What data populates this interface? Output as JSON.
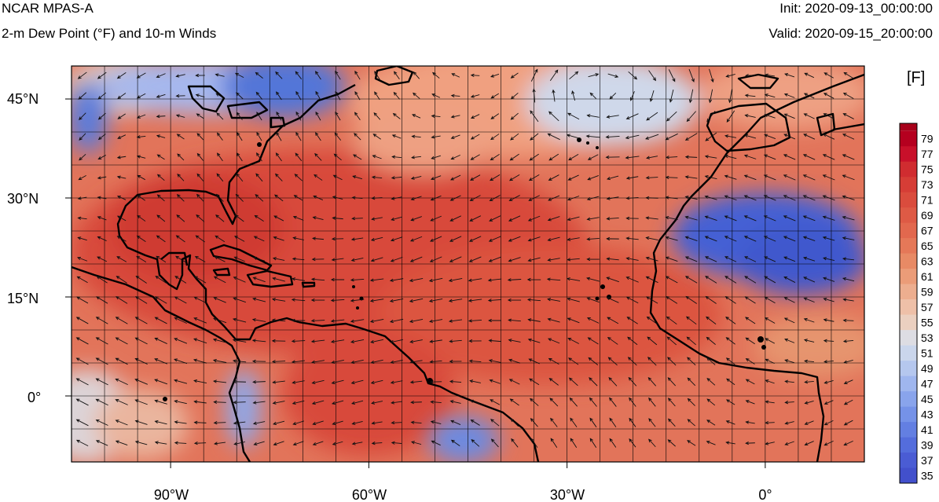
{
  "header": {
    "model": "NCAR MPAS-A",
    "field": "2-m Dew Point (°F) and 10-m Winds",
    "init": "Init: 2020-09-13_00:00:00",
    "valid": "Valid: 2020-09-15_20:00:00"
  },
  "map": {
    "lat_labels": [
      "45°N",
      "30°N",
      "15°N",
      "0°"
    ],
    "lon_labels": [
      "90°W",
      "60°W",
      "30°W",
      "0°"
    ],
    "lat_range": [
      -10,
      50
    ],
    "lon_range": [
      -105,
      15
    ],
    "grid_spacing_deg": 5,
    "colors": {
      "warm": "#d9503a",
      "cool": "#4466d8",
      "coast": "#000000"
    }
  },
  "colorbar": {
    "units": "[F]",
    "labels": [
      "79",
      "77",
      "75",
      "73",
      "71",
      "69",
      "67",
      "65",
      "63",
      "61",
      "59",
      "57",
      "55",
      "53",
      "51",
      "49",
      "47",
      "45",
      "43",
      "41",
      "39",
      "37",
      "35"
    ],
    "colors": [
      "#b5001f",
      "#c8102a",
      "#d02c30",
      "#d63d36",
      "#da4c3d",
      "#de5a45",
      "#e2684e",
      "#e57858",
      "#e88a65",
      "#eb9c78",
      "#edae8f",
      "#eec0a8",
      "#ebd0c0",
      "#dddde3",
      "#cad6ec",
      "#b5c7ee",
      "#9fb6ee",
      "#89a4ec",
      "#7592e8",
      "#637fe2",
      "#546ddc",
      "#4a5cd4",
      "#4250cc"
    ]
  }
}
